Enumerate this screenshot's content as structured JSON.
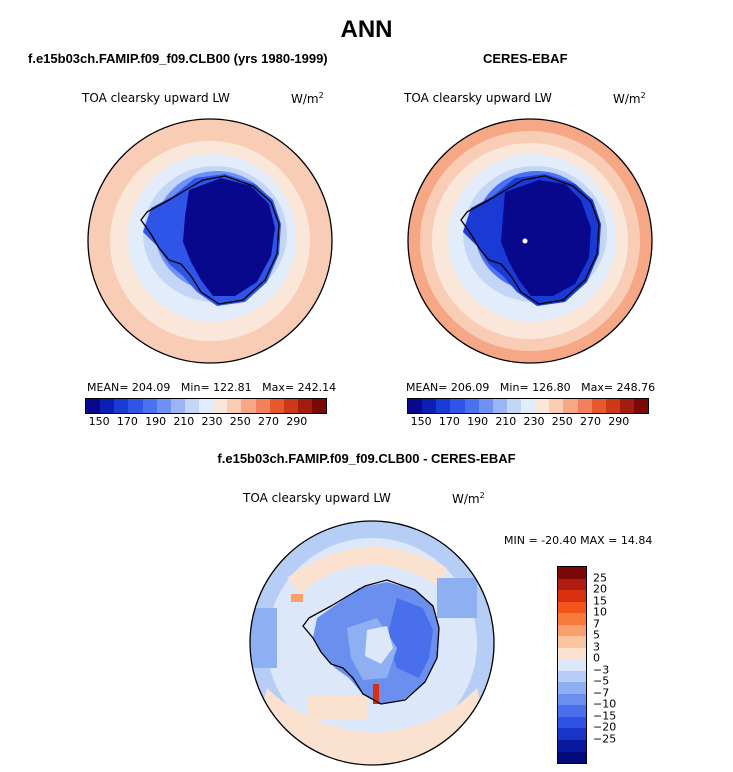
{
  "main_title": "ANN",
  "panels": [
    {
      "title": "f.e15b03ch.FAMIP.f09_f09.CLB00 (yrs 1980-1999)",
      "variable": "TOA clearsky upward LW",
      "units": "W/m",
      "units_exp": "2",
      "mean_label": "MEAN=",
      "mean": "204.09",
      "min_label": "Min=",
      "min": "122.81",
      "max_label": "Max=",
      "max": "242.14"
    },
    {
      "title": "CERES-EBAF",
      "variable": "TOA clearsky upward LW",
      "units": "W/m",
      "units_exp": "2",
      "mean_label": "MEAN=",
      "mean": "206.09",
      "min_label": "Min=",
      "min": "126.80",
      "max_label": "Max=",
      "max": "248.76"
    }
  ],
  "diff_panel": {
    "title": "f.e15b03ch.FAMIP.f09_f09.CLB00 - CERES-EBAF",
    "variable": "TOA clearsky upward LW",
    "units": "W/m",
    "units_exp": "2",
    "minmax": "MIN = -20.40 MAX =  14.84"
  },
  "colorbar_abs": {
    "colors": [
      "#08088c",
      "#0c1fb4",
      "#1a3ad6",
      "#2e55e8",
      "#4a72f0",
      "#6f91f4",
      "#9bb4f5",
      "#c4d6f8",
      "#e2ecfb",
      "#fbe6da",
      "#f9ccb3",
      "#f6a886",
      "#f2805c",
      "#e8582e",
      "#cc3818",
      "#a31d0e",
      "#7a0a06"
    ],
    "ticks": [
      "150",
      "170",
      "190",
      "210",
      "230",
      "250",
      "270",
      "290"
    ]
  },
  "colorbar_diff": {
    "colors": [
      "#7a0808",
      "#b01c10",
      "#d8300e",
      "#f2541a",
      "#f77a3a",
      "#f9a06a",
      "#fac49e",
      "#fbe2d0",
      "#dce8fa",
      "#b6cdf6",
      "#8eaff2",
      "#6a8fef",
      "#4a6fec",
      "#2e52e6",
      "#1a34c8",
      "#0a18a0",
      "#040a7c"
    ],
    "ticks": [
      "25",
      "20",
      "15",
      "10",
      "7",
      "5",
      "3",
      "0",
      "−3",
      "−5",
      "−7",
      "−10",
      "−15",
      "−20",
      "−25"
    ]
  }
}
